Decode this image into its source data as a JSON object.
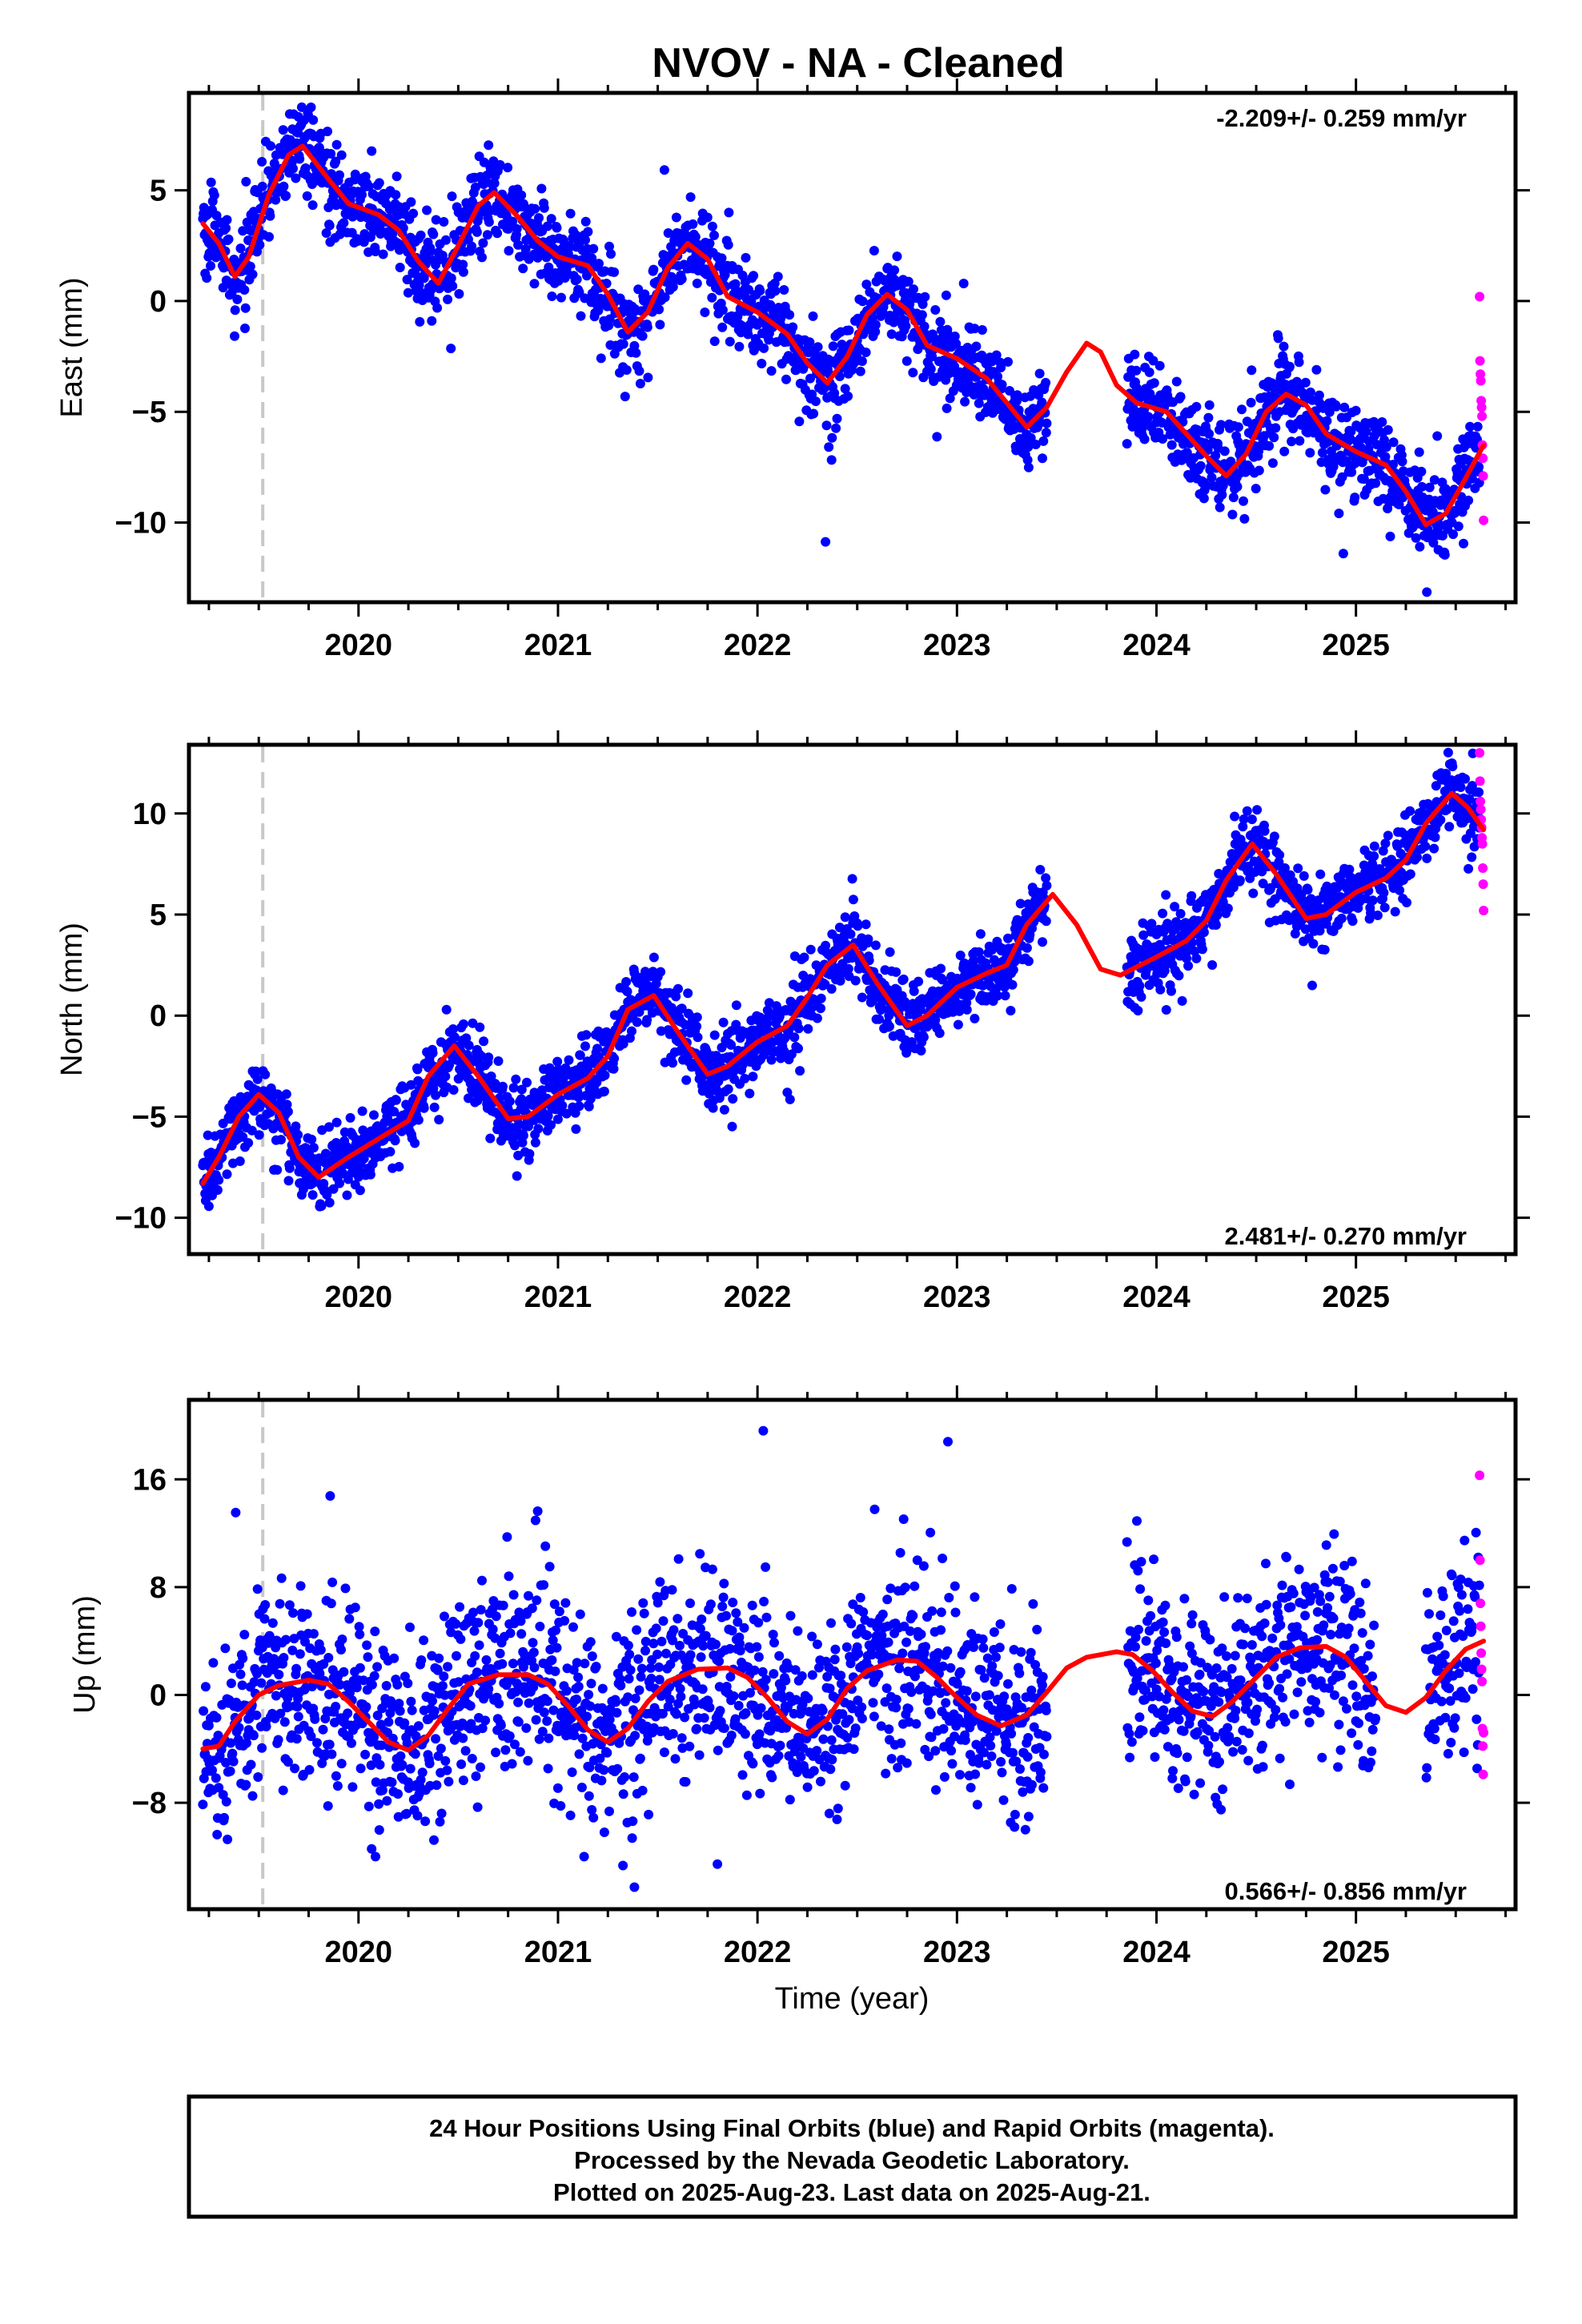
{
  "title": "NVOV  - NA - Cleaned",
  "footer": {
    "lines": [
      "24 Hour Positions Using Final Orbits (blue) and Rapid Orbits (magenta).",
      "Processed by the Nevada Geodetic Laboratory.",
      "Plotted on 2025-Aug-23. Last data on 2025-Aug-21."
    ]
  },
  "colors": {
    "final_orbits": "#0000ff",
    "rapid_orbits": "#ff00ff",
    "model_fit": "#ff0000",
    "event_line": "#c8c8c8"
  },
  "chart_data": [
    {
      "type": "scatter",
      "name": "east",
      "ylabel": "East (mm)",
      "xlabel": "",
      "rate_label": "-2.209+/- 0.259 mm/yr",
      "rate_position": "top-right",
      "xlim": [
        2019.15,
        2025.8
      ],
      "ylim": [
        -13.6,
        9.4
      ],
      "xticks": [
        2020,
        2021,
        2022,
        2023,
        2024,
        2025
      ],
      "yticks": [
        -10,
        -5,
        0,
        5
      ],
      "event_line_x": 2019.52,
      "gaps": [
        [
          2023.45,
          2023.85
        ]
      ],
      "rapid_start": 2025.62,
      "data_end": 2025.64,
      "model_fit": [
        [
          2019.22,
          3.5
        ],
        [
          2019.3,
          2.6
        ],
        [
          2019.38,
          1.1
        ],
        [
          2019.45,
          2.0
        ],
        [
          2019.55,
          4.8
        ],
        [
          2019.65,
          6.6
        ],
        [
          2019.72,
          7.0
        ],
        [
          2019.85,
          5.5
        ],
        [
          2019.95,
          4.4
        ],
        [
          2020.1,
          3.9
        ],
        [
          2020.2,
          3.2
        ],
        [
          2020.3,
          1.8
        ],
        [
          2020.4,
          0.8
        ],
        [
          2020.5,
          2.5
        ],
        [
          2020.6,
          4.3
        ],
        [
          2020.68,
          4.9
        ],
        [
          2020.8,
          3.8
        ],
        [
          2020.9,
          2.7
        ],
        [
          2021.0,
          2.0
        ],
        [
          2021.15,
          1.6
        ],
        [
          2021.25,
          0.3
        ],
        [
          2021.35,
          -1.4
        ],
        [
          2021.45,
          -0.5
        ],
        [
          2021.55,
          1.5
        ],
        [
          2021.65,
          2.6
        ],
        [
          2021.75,
          1.9
        ],
        [
          2021.85,
          0.2
        ],
        [
          2022.0,
          -0.5
        ],
        [
          2022.15,
          -1.5
        ],
        [
          2022.25,
          -2.8
        ],
        [
          2022.35,
          -3.7
        ],
        [
          2022.45,
          -2.5
        ],
        [
          2022.55,
          -0.6
        ],
        [
          2022.65,
          0.3
        ],
        [
          2022.75,
          -0.4
        ],
        [
          2022.85,
          -2.0
        ],
        [
          2023.0,
          -2.6
        ],
        [
          2023.15,
          -3.5
        ],
        [
          2023.25,
          -4.6
        ],
        [
          2023.35,
          -5.7
        ],
        [
          2023.45,
          -4.8
        ],
        [
          2023.55,
          -3.2
        ],
        [
          2023.65,
          -1.9
        ],
        [
          2023.72,
          -2.3
        ],
        [
          2023.8,
          -3.8
        ],
        [
          2023.9,
          -4.6
        ],
        [
          2024.05,
          -5.0
        ],
        [
          2024.15,
          -6.0
        ],
        [
          2024.25,
          -7.0
        ],
        [
          2024.35,
          -7.9
        ],
        [
          2024.45,
          -6.9
        ],
        [
          2024.55,
          -5.0
        ],
        [
          2024.65,
          -4.2
        ],
        [
          2024.75,
          -4.7
        ],
        [
          2024.85,
          -6.0
        ],
        [
          2025.0,
          -6.8
        ],
        [
          2025.15,
          -7.4
        ],
        [
          2025.25,
          -8.6
        ],
        [
          2025.35,
          -10.1
        ],
        [
          2025.45,
          -9.6
        ],
        [
          2025.55,
          -8.0
        ],
        [
          2025.64,
          -6.5
        ]
      ],
      "scatter_noise": 1.0,
      "rapid_points": [
        0.2,
        -2.7,
        -3.3,
        -3.6,
        -4.5,
        -4.8,
        -5.2,
        -6.5,
        -7.1,
        -7.9,
        -9.9
      ]
    },
    {
      "type": "scatter",
      "name": "north",
      "ylabel": "North (mm)",
      "xlabel": "",
      "rate_label": "2.481+/- 0.270 mm/yr",
      "rate_position": "bottom-right",
      "xlim": [
        2019.15,
        2025.8
      ],
      "ylim": [
        -11.8,
        13.4
      ],
      "xticks": [
        2020,
        2021,
        2022,
        2023,
        2024,
        2025
      ],
      "yticks": [
        -10,
        -5,
        0,
        5,
        10
      ],
      "event_line_x": 2019.52,
      "gaps": [
        [
          2023.45,
          2023.85
        ]
      ],
      "rapid_start": 2025.62,
      "data_end": 2025.64,
      "model_fit": [
        [
          2019.22,
          -8.3
        ],
        [
          2019.3,
          -7.0
        ],
        [
          2019.4,
          -5.0
        ],
        [
          2019.5,
          -3.9
        ],
        [
          2019.6,
          -4.8
        ],
        [
          2019.7,
          -7.0
        ],
        [
          2019.8,
          -8.0
        ],
        [
          2019.95,
          -7.0
        ],
        [
          2020.1,
          -6.1
        ],
        [
          2020.25,
          -5.2
        ],
        [
          2020.35,
          -3.0
        ],
        [
          2020.48,
          -1.5
        ],
        [
          2020.6,
          -3.0
        ],
        [
          2020.75,
          -5.1
        ],
        [
          2020.85,
          -5.0
        ],
        [
          2021.0,
          -3.9
        ],
        [
          2021.15,
          -3.1
        ],
        [
          2021.25,
          -2.0
        ],
        [
          2021.35,
          0.3
        ],
        [
          2021.48,
          1.0
        ],
        [
          2021.6,
          -0.8
        ],
        [
          2021.75,
          -2.9
        ],
        [
          2021.85,
          -2.5
        ],
        [
          2022.0,
          -1.3
        ],
        [
          2022.15,
          -0.5
        ],
        [
          2022.25,
          0.9
        ],
        [
          2022.35,
          2.5
        ],
        [
          2022.48,
          3.5
        ],
        [
          2022.6,
          1.6
        ],
        [
          2022.75,
          -0.5
        ],
        [
          2022.85,
          0.0
        ],
        [
          2023.0,
          1.4
        ],
        [
          2023.15,
          2.1
        ],
        [
          2023.25,
          2.5
        ],
        [
          2023.35,
          4.5
        ],
        [
          2023.48,
          6.0
        ],
        [
          2023.6,
          4.5
        ],
        [
          2023.72,
          2.3
        ],
        [
          2023.82,
          2.0
        ],
        [
          2024.0,
          2.9
        ],
        [
          2024.15,
          3.7
        ],
        [
          2024.25,
          4.7
        ],
        [
          2024.35,
          6.7
        ],
        [
          2024.48,
          8.5
        ],
        [
          2024.6,
          7.0
        ],
        [
          2024.75,
          4.8
        ],
        [
          2024.85,
          5.0
        ],
        [
          2025.0,
          6.1
        ],
        [
          2025.15,
          6.8
        ],
        [
          2025.25,
          7.7
        ],
        [
          2025.35,
          9.5
        ],
        [
          2025.48,
          11.0
        ],
        [
          2025.56,
          10.3
        ],
        [
          2025.64,
          9.2
        ]
      ],
      "scatter_noise": 0.9,
      "rapid_points": [
        13.0,
        11.6,
        10.6,
        10.2,
        9.7,
        9.3,
        8.8,
        8.5,
        7.3,
        6.5,
        5.2
      ]
    },
    {
      "type": "scatter",
      "name": "up",
      "ylabel": "Up (mm)",
      "xlabel": "Time (year)",
      "rate_label": "0.566+/- 0.856 mm/yr",
      "rate_position": "bottom-right",
      "xlim": [
        2019.15,
        2025.8
      ],
      "ylim": [
        -15.9,
        21.9
      ],
      "xticks": [
        2020,
        2021,
        2022,
        2023,
        2024,
        2025
      ],
      "yticks": [
        -8,
        0,
        8,
        16
      ],
      "event_line_x": 2019.52,
      "gaps": [
        [
          2023.45,
          2023.85
        ],
        [
          2025.1,
          2025.35
        ]
      ],
      "rapid_start": 2025.62,
      "data_end": 2025.64,
      "model_fit": [
        [
          2019.22,
          -4.0
        ],
        [
          2019.3,
          -3.8
        ],
        [
          2019.38,
          -2.0
        ],
        [
          2019.5,
          0.0
        ],
        [
          2019.6,
          0.7
        ],
        [
          2019.75,
          1.1
        ],
        [
          2019.85,
          0.8
        ],
        [
          2019.95,
          -0.5
        ],
        [
          2020.05,
          -2.0
        ],
        [
          2020.15,
          -3.5
        ],
        [
          2020.25,
          -4.1
        ],
        [
          2020.35,
          -3.0
        ],
        [
          2020.45,
          -1.0
        ],
        [
          2020.55,
          0.8
        ],
        [
          2020.7,
          1.5
        ],
        [
          2020.85,
          1.5
        ],
        [
          2020.95,
          0.8
        ],
        [
          2021.05,
          -0.8
        ],
        [
          2021.15,
          -2.6
        ],
        [
          2021.25,
          -3.5
        ],
        [
          2021.35,
          -2.5
        ],
        [
          2021.45,
          -0.5
        ],
        [
          2021.55,
          1.0
        ],
        [
          2021.7,
          1.9
        ],
        [
          2021.85,
          2.0
        ],
        [
          2021.95,
          1.3
        ],
        [
          2022.05,
          -0.2
        ],
        [
          2022.15,
          -2.0
        ],
        [
          2022.25,
          -2.9
        ],
        [
          2022.35,
          -1.8
        ],
        [
          2022.45,
          0.5
        ],
        [
          2022.55,
          1.8
        ],
        [
          2022.7,
          2.6
        ],
        [
          2022.8,
          2.5
        ],
        [
          2022.9,
          1.3
        ],
        [
          2023.0,
          -0.2
        ],
        [
          2023.1,
          -1.5
        ],
        [
          2023.22,
          -2.3
        ],
        [
          2023.35,
          -1.5
        ],
        [
          2023.45,
          0.2
        ],
        [
          2023.55,
          2.0
        ],
        [
          2023.65,
          2.8
        ],
        [
          2023.8,
          3.2
        ],
        [
          2023.88,
          3.0
        ],
        [
          2023.98,
          1.8
        ],
        [
          2024.08,
          0.2
        ],
        [
          2024.18,
          -1.2
        ],
        [
          2024.28,
          -1.6
        ],
        [
          2024.38,
          -0.5
        ],
        [
          2024.5,
          1.3
        ],
        [
          2024.6,
          2.8
        ],
        [
          2024.72,
          3.5
        ],
        [
          2024.85,
          3.6
        ],
        [
          2024.95,
          2.8
        ],
        [
          2025.05,
          1.0
        ],
        [
          2025.15,
          -0.8
        ],
        [
          2025.25,
          -1.3
        ],
        [
          2025.35,
          -0.2
        ],
        [
          2025.45,
          1.8
        ],
        [
          2025.55,
          3.4
        ],
        [
          2025.64,
          4.0
        ]
      ],
      "scatter_noise": 3.6,
      "rapid_points": [
        16.3,
        10.0,
        6.8,
        5.1,
        3.1,
        1.9,
        1.0,
        -2.5,
        -3.8,
        -5.9,
        -2.8
      ]
    }
  ]
}
